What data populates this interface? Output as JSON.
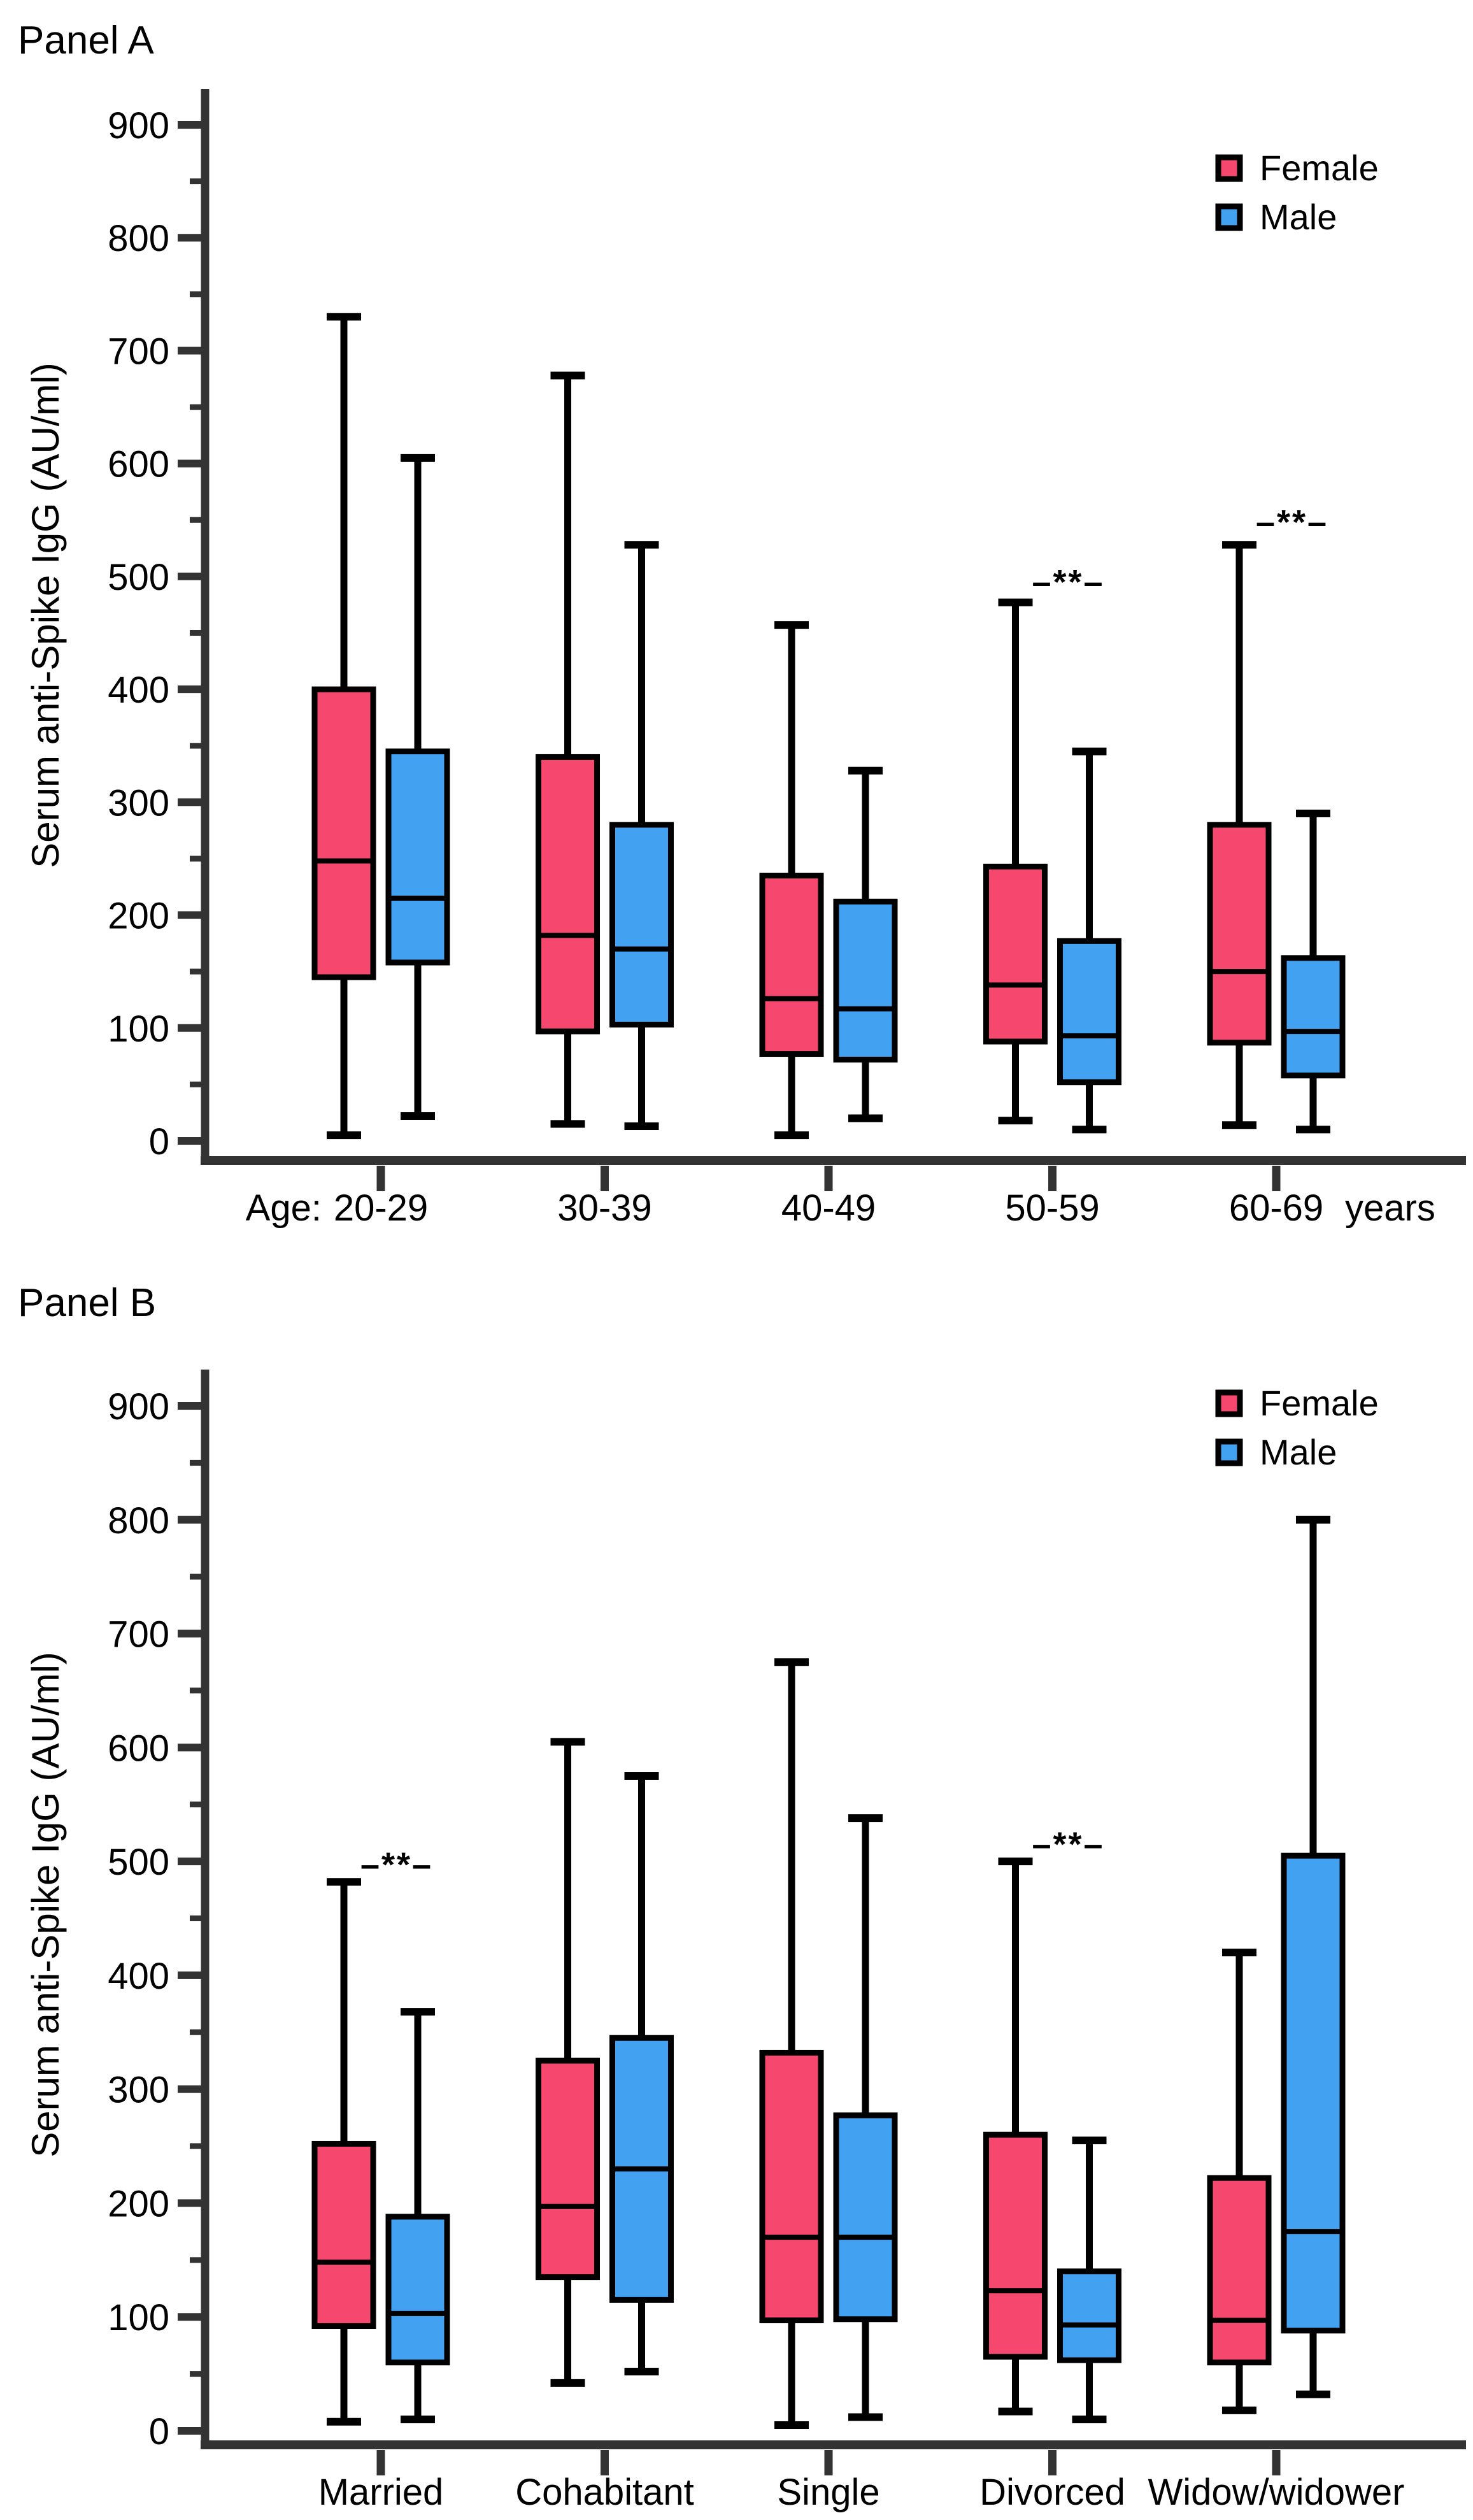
{
  "colors": {
    "axis": "#333333",
    "box_stroke": "#000000",
    "text": "#000000"
  },
  "chart_data": [
    {
      "type": "boxplot",
      "title": "Panel A",
      "ylabel": "Serum anti-Spike IgG (AU/ml)",
      "ylim": [
        0,
        940
      ],
      "yticks": [
        0,
        100,
        200,
        300,
        400,
        500,
        600,
        700,
        800,
        900
      ],
      "ytick_minor_step": 50,
      "grid": false,
      "legend_position": "top-right",
      "x_prefix": "Age:",
      "x_suffix": "years",
      "categories": [
        "20-29",
        "30-39",
        "40-49",
        "50-59",
        "60-69"
      ],
      "series": [
        {
          "name": "Female",
          "color": "#F6476F",
          "boxes": [
            {
              "low": 5,
              "q1": 145,
              "median": 248,
              "q3": 400,
              "high": 730
            },
            {
              "low": 15,
              "q1": 97,
              "median": 182,
              "q3": 340,
              "high": 678
            },
            {
              "low": 5,
              "q1": 77,
              "median": 126,
              "q3": 235,
              "high": 457
            },
            {
              "low": 18,
              "q1": 88,
              "median": 138,
              "q3": 243,
              "high": 477
            },
            {
              "low": 14,
              "q1": 87,
              "median": 150,
              "q3": 280,
              "high": 528
            }
          ]
        },
        {
          "name": "Male",
          "color": "#42A1F0",
          "boxes": [
            {
              "low": 22,
              "q1": 158,
              "median": 215,
              "q3": 345,
              "high": 605
            },
            {
              "low": 13,
              "q1": 103,
              "median": 170,
              "q3": 280,
              "high": 528
            },
            {
              "low": 20,
              "q1": 72,
              "median": 117,
              "q3": 212,
              "high": 328
            },
            {
              "low": 10,
              "q1": 52,
              "median": 93,
              "q3": 177,
              "high": 345
            },
            {
              "low": 10,
              "q1": 58,
              "median": 97,
              "q3": 162,
              "high": 290
            }
          ]
        }
      ],
      "significance": [
        {
          "category": "50-59",
          "label": "–**–",
          "at_value": 495
        },
        {
          "category": "60-69",
          "label": "–**–",
          "at_value": 548
        }
      ]
    },
    {
      "type": "boxplot",
      "title": "Panel B",
      "ylabel": "Serum anti-Spike IgG (AU/ml)",
      "ylim": [
        0,
        940
      ],
      "yticks": [
        0,
        100,
        200,
        300,
        400,
        500,
        600,
        700,
        800,
        900
      ],
      "ytick_minor_step": 50,
      "grid": false,
      "legend_position": "top-right",
      "x_prefix": "",
      "x_suffix": "",
      "categories": [
        "Married",
        "Cohabitant",
        "Single",
        "Divorced",
        "Widow/widower"
      ],
      "series": [
        {
          "name": "Female",
          "color": "#F6476F",
          "boxes": [
            {
              "low": 8,
              "q1": 92,
              "median": 148,
              "q3": 252,
              "high": 482
            },
            {
              "low": 42,
              "q1": 135,
              "median": 197,
              "q3": 325,
              "high": 605
            },
            {
              "low": 5,
              "q1": 97,
              "median": 170,
              "q3": 332,
              "high": 675
            },
            {
              "low": 17,
              "q1": 65,
              "median": 123,
              "q3": 260,
              "high": 500
            },
            {
              "low": 18,
              "q1": 60,
              "median": 97,
              "q3": 222,
              "high": 420
            }
          ]
        },
        {
          "name": "Male",
          "color": "#42A1F0",
          "boxes": [
            {
              "low": 10,
              "q1": 60,
              "median": 103,
              "q3": 188,
              "high": 368
            },
            {
              "low": 52,
              "q1": 115,
              "median": 230,
              "q3": 345,
              "high": 575
            },
            {
              "low": 12,
              "q1": 98,
              "median": 170,
              "q3": 277,
              "high": 538
            },
            {
              "low": 10,
              "q1": 62,
              "median": 93,
              "q3": 140,
              "high": 255
            },
            {
              "low": 32,
              "q1": 88,
              "median": 175,
              "q3": 505,
              "high": 800
            }
          ]
        }
      ],
      "significance": [
        {
          "category": "Married",
          "label": "–**–",
          "at_value": 497
        },
        {
          "category": "Divorced",
          "label": "–**–",
          "at_value": 515
        }
      ]
    }
  ]
}
